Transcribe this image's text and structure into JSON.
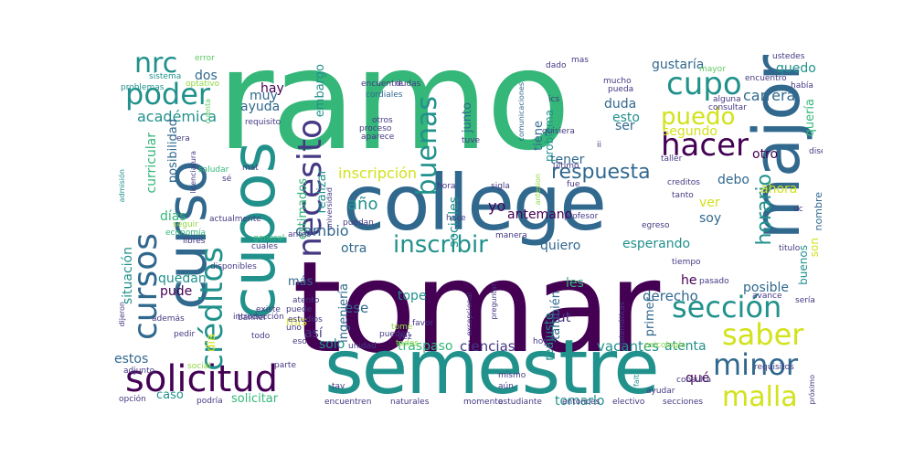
{
  "palette": {
    "green": "#35b779",
    "teal": "#21918c",
    "blue": "#31688e",
    "indigo": "#443983",
    "purple": "#440154",
    "lime": "#90d743",
    "yellow": "#d2e21b",
    "lightgreen": "#5ec962"
  },
  "words": {
    "ramo": "ramo",
    "tomar": "tomar",
    "semestre": "semestre",
    "college": "college",
    "major": "major",
    "curso": "curso",
    "cupos": "cupos",
    "solicitud": "solicitud",
    "necesito": "necesito",
    "poder": "poder",
    "cursos": "cursos",
    "creditos": "créditos",
    "hacer": "hacer",
    "cupo": "cupo",
    "seccion": "sección",
    "minor": "minor",
    "malla": "malla",
    "saber": "saber",
    "inscribir": "inscribir",
    "buenas": "buenas",
    "nrc": "nrc",
    "respuesta": "respuesta",
    "puedo": "puedo",
    "horario": "horario",
    "academica": "académica",
    "inscripcion": "inscripción",
    "ano": "año",
    "cambio": "cambio",
    "tomarlo": "tomarlo",
    "carrera": "carrera",
    "gustaria": "gustaría",
    "esperando": "esperando",
    "posible": "posible",
    "vacantes": "vacantes",
    "ciencias": "ciencias",
    "solo": "solo",
    "quiero": "quiero",
    "otra": "otra",
    "dias": "días",
    "curricular": "curricular",
    "posibilidad": "posibilidad",
    "situacion": "situación",
    "quedan": "quedan",
    "pude": "pude",
    "caso": "caso",
    "estos": "estos",
    "solicitar": "solicitar",
    "dia": "día",
    "traspaso": "traspaso",
    "tope": "tope",
    "les": "les",
    "ese": "ese",
    "mis": "mis",
    "mas": "más",
    "ingenieria": "ingeniería",
    "sociales": "sociales",
    "tambien": "también",
    "rut": "rut",
    "reajuste": "reajuste",
    "derecho": "derecho",
    "he": "he",
    "primer": "primer",
    "atenta": "atenta",
    "que": "qué",
    "buenos": "buenos",
    "son": "son",
    "soy": "soy",
    "ver": "ver",
    "debo": "debo",
    "otro": "otro",
    "ahora": "ahora",
    "nombre": "nombre",
    "duda": "duda",
    "esto": "esto",
    "ser": "ser",
    "segundo": "segundo",
    "tener": "tener",
    "antemano": "antemano",
    "tiene": "tiene",
    "problema": "problema",
    "junto": "junto",
    "hay": "hay",
    "muy": "muy",
    "ayuda": "ayuda",
    "dos": "dos",
    "embargo": "embargo",
    "realizar": "realizar",
    "estimados": "estimados",
    "yo": "yo",
    "quedo": "quedo",
    "queria": "quería",
    "cordiales": "cordiales",
    "encuentre": "encuentre",
    "requisito": "requisito",
    "proceso": "proceso",
    "aparece": "aparece",
    "otros": "otros",
    "comunicaciones": "comunicaciones",
    "error": "error",
    "sistema": "sistema",
    "optativo": "optativo",
    "problemas": "problemas",
    "dudas": "dudas",
    "ics": "ics",
    "dado": "dado",
    "mas2": "mas",
    "mucho": "mucho",
    "pueda": "pueda",
    "alguna": "alguna",
    "consultar": "consultar",
    "mayor": "mayor",
    "habia": "había",
    "ustedes": "ustedes",
    "saludar": "saludar",
    "se": "sé",
    "mat": "mat",
    "era": "era",
    "cuenta": "cuenta",
    "licenciatura": "licenciatura",
    "admision": "admisión",
    "seguir": "seguir",
    "economia": "economía",
    "libres": "libres",
    "actualmente": "actualmente",
    "general": "general",
    "cuales": "cuales",
    "disponibles": "disponibles",
    "universidad": "universidad",
    "puedan": "puedan",
    "antes": "antes",
    "hora": "hora",
    "sigla": "sigla",
    "hace": "hace",
    "manera": "manera",
    "antesion": "antesion",
    "profesor": "profesor",
    "egreso": "egreso",
    "tanto": "tanto",
    "creditos2": "creditos",
    "taller": "taller",
    "fue": "fue",
    "ultimo": "último",
    "tuve": "tuve",
    "quisiera": "quisiera",
    "ii": "ii",
    "diseno": "diseño",
    "encuentro": "encuentro",
    "uc": "uc",
    "titulo": "titulo",
    "tiempo": "tiempo",
    "pasado": "pasado",
    "avance": "avance",
    "seria": "sería",
    "atento": "atento",
    "existe": "existe",
    "banner": "banner",
    "puede": "puede",
    "estudios": "estudios",
    "tome": "tome",
    "favor": "favor",
    "pueden": "pueden",
    "todos": "todos",
    "excepcional": "excepcional",
    "preguntar": "preguntar",
    "matematicas": "matemáticas",
    "psicologia": "psicología",
    "requisitos": "requisitos",
    "proximo": "próximo",
    "ademas": "además",
    "dijeron": "dijeron",
    "introduccion": "introducción",
    "pedir": "pedir",
    "todo": "todo",
    "uno": "uno",
    "asi": "así",
    "unidad": "unidad",
    "hoy": "hoy",
    "vez": "vez",
    "adjunto": "adjunto",
    "social": "social",
    "parte": "parte",
    "opcion": "opción",
    "podria": "podría",
    "tav": "tav",
    "encuentren": "encuentren",
    "naturales": "naturales",
    "mismo": "mismo",
    "aun": "aún",
    "momento": "momento",
    "estudiante": "estudiante",
    "entonces": "entonces",
    "electivo": "electivo",
    "falta": "falta",
    "ayudar": "ayudar",
    "consulta": "consulta",
    "secciones": "secciones",
    "eso": "eso"
  }
}
